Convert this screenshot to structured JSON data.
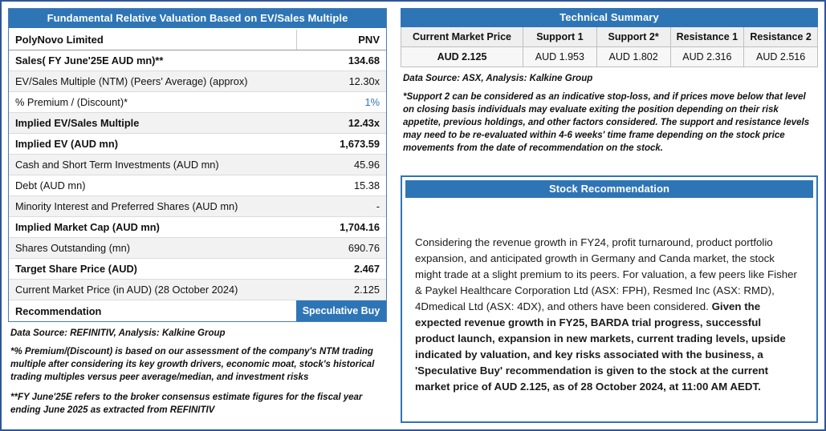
{
  "colors": {
    "header_blue": "#2E75B6",
    "page_border_blue": "#2F5597",
    "accent_value_blue": "#2E75B6",
    "row_shade_gray": "#F2F2F2"
  },
  "valuation": {
    "title": "Fundamental Relative Valuation Based on EV/Sales Multiple",
    "company": "PolyNovo Limited",
    "ticker": "PNV",
    "rows": [
      {
        "label": "Sales( FY June'25E AUD mn)**",
        "value": "134.68"
      },
      {
        "label": "EV/Sales Multiple (NTM)  (Peers' Average) (approx)",
        "value": "12.30x"
      },
      {
        "label": "% Premium / (Discount)*",
        "value": "1%"
      },
      {
        "label": "Implied EV/Sales Multiple",
        "value": "12.43x"
      },
      {
        "label": "Implied EV (AUD mn)",
        "value": "1,673.59"
      },
      {
        "label": "Cash and Short Term Investments (AUD mn)",
        "value": "45.96"
      },
      {
        "label": "Debt (AUD mn)",
        "value": "15.38"
      },
      {
        "label": "Minority Interest and Preferred Shares (AUD mn)",
        "value": "-"
      },
      {
        "label": "Implied Market Cap (AUD mn)",
        "value": "1,704.16"
      },
      {
        "label": "Shares Outstanding (mn)",
        "value": "690.76"
      },
      {
        "label": "Target Share Price (AUD)",
        "value": "2.467"
      },
      {
        "label": "Current Market Price (in AUD) (28 October 2024)",
        "value": "2.125"
      },
      {
        "label": "Recommendation",
        "value": "Speculative Buy"
      }
    ],
    "source": "Data Source: REFINITIV, Analysis: Kalkine Group",
    "footnote1": "*% Premium/(Discount) is based on our assessment of the company's NTM trading multiple after considering its key growth drivers, economic moat, stock's historical trading multiples versus peer average/median, and investment risks",
    "footnote2": "**FY June'25E refers to the broker consensus estimate figures for the fiscal year ending June 2025 as extracted from REFINITIV"
  },
  "technical": {
    "title": "Technical Summary",
    "columns": [
      "Current Market Price",
      "Support 1",
      "Support 2*",
      "Resistance 1",
      "Resistance 2"
    ],
    "values": [
      "AUD 2.125",
      "AUD 1.953",
      "AUD 1.802",
      "AUD 2.316",
      "AUD 2.516"
    ],
    "source": "Data Source: ASX, Analysis: Kalkine Group",
    "footnote": "*Support 2 can be considered as an indicative stop-loss, and if prices move below that level on closing basis individuals may evaluate exiting the position depending on their risk appetite, previous holdings, and other factors considered. The support and resistance levels may need to be re-evaluated within 4-6 weeks' time frame depending on the stock price movements from the date of recommendation on the stock."
  },
  "recommendation": {
    "title": "Stock Recommendation",
    "body_regular": "Considering the revenue growth in FY24, profit turnaround, product portfolio expansion, and anticipated growth in Germany and Canda market, the stock might trade at a slight premium to its peers. For valuation, a few peers like Fisher & Paykel Healthcare Corporation Ltd (ASX: FPH), Resmed Inc (ASX: RMD), 4Dmedical Ltd (ASX: 4DX), and others have been considered. ",
    "body_bold": "Given the expected revenue growth in FY25, BARDA trial progress, successful product launch, expansion in new markets, current trading levels, upside indicated by valuation, and key risks associated with the business, a 'Speculative Buy' recommendation is given to the stock at the current market price of AUD 2.125, as of 28 October 2024, at 11:00 AM AEDT."
  }
}
